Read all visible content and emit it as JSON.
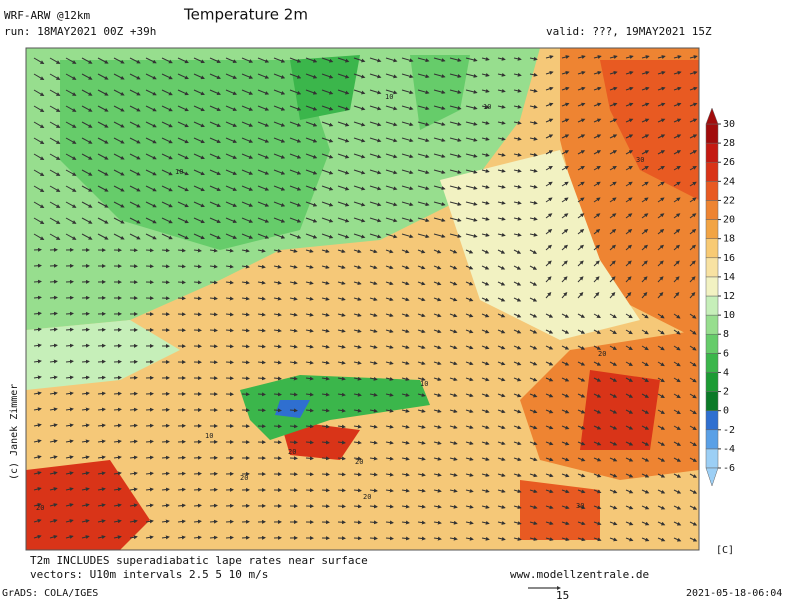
{
  "header": {
    "model": "WRF-ARW @12km",
    "title": "Temperature 2m",
    "run": "run: 18MAY2021 00Z +39h",
    "valid": "valid: ???, 19MAY2021 15Z"
  },
  "colorbar": {
    "ticks": [
      -6,
      -4,
      -2,
      0,
      2,
      4,
      6,
      8,
      10,
      12,
      14,
      16,
      18,
      20,
      22,
      24,
      26,
      28,
      30
    ],
    "colors": [
      "#9ccff5",
      "#5aa0e6",
      "#2f6fd0",
      "#0b7a28",
      "#1c9b34",
      "#3bb64b",
      "#66cc6a",
      "#97de8e",
      "#c6efb9",
      "#f2f2c2",
      "#f8e2a2",
      "#f8ca74",
      "#f2a444",
      "#ee8432",
      "#e85a22",
      "#d93418",
      "#c41a12",
      "#a10c0c"
    ],
    "unit": "[C]"
  },
  "contour_labels": [
    "10",
    "10",
    "10",
    "10",
    "30",
    "20",
    "20",
    "20",
    "20",
    "20",
    "10",
    "20",
    "30"
  ],
  "credit": "(c) Janek Zimmer",
  "footer": {
    "note1": "T2m INCLUDES superadiabatic lape rates near surface",
    "note2": "vectors: U10m intervals 2.5 5 10 m/s",
    "site": "www.modellzentrale.de",
    "vector_scale": "15",
    "software": "GrADS: COLA/IGES",
    "timestamp": "2021-05-18-06:04"
  }
}
